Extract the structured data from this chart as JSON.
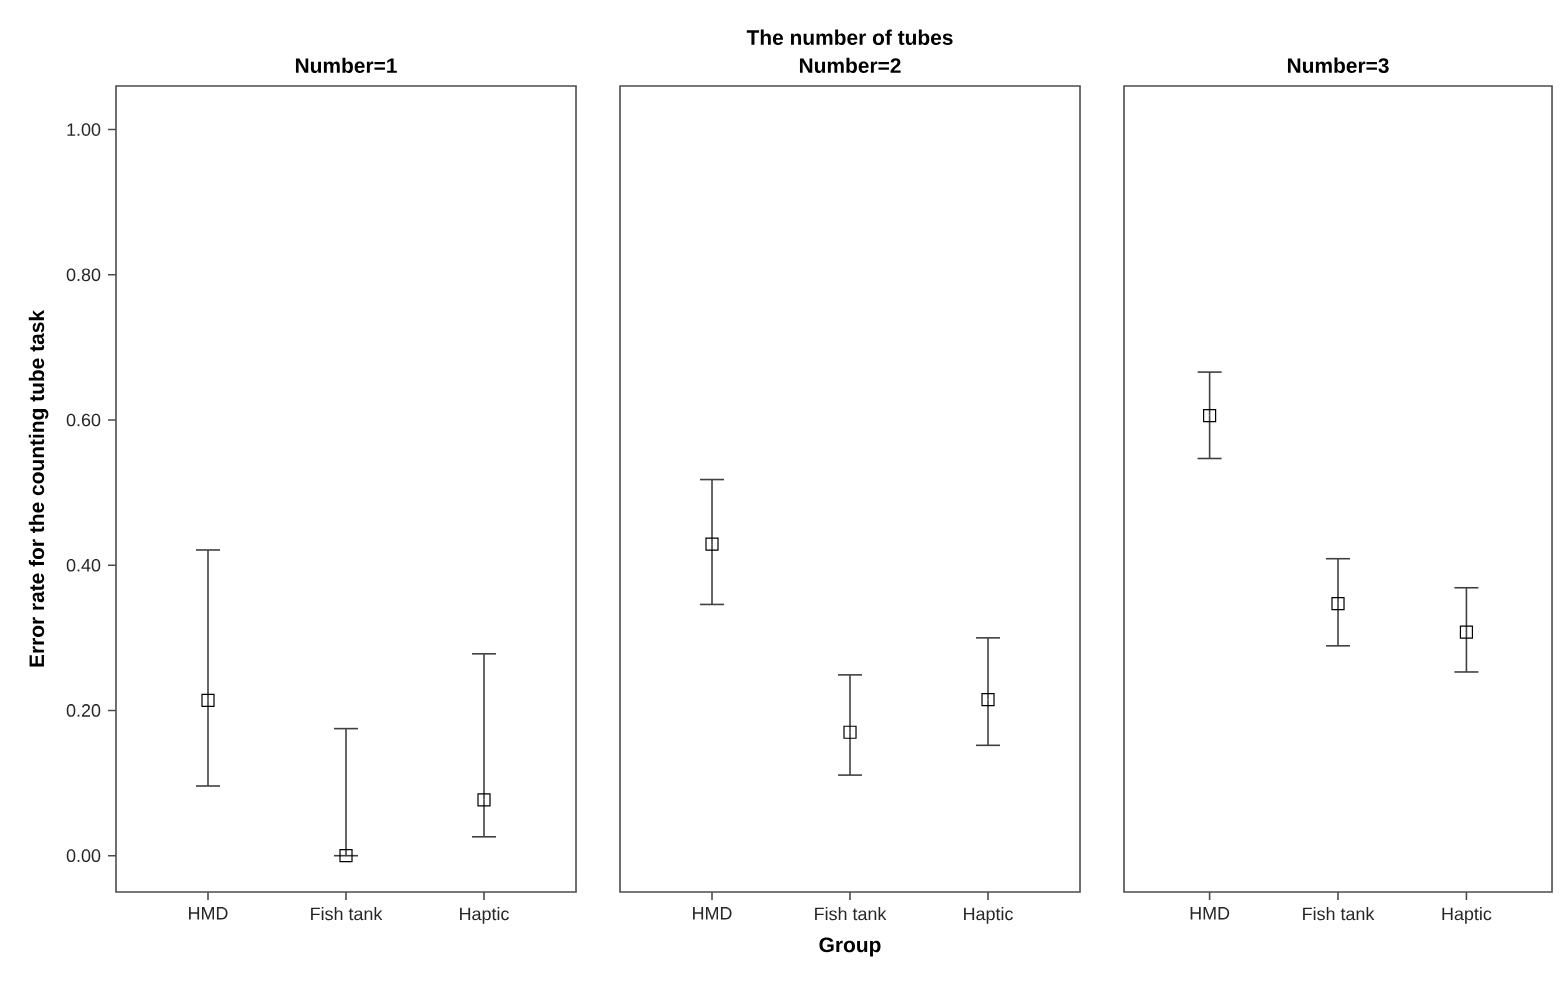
{
  "chart_data": [
    {
      "type": "scatter",
      "title": "Number=1",
      "ylabel": "Error rate for the counting tube task",
      "categories": [
        "HMD",
        "Fish tank",
        "Haptic"
      ],
      "values": [
        0.214,
        0.0,
        0.077
      ],
      "errors": [
        [
          0.096,
          0.421
        ],
        [
          0.0,
          0.175
        ],
        [
          0.026,
          0.278
        ]
      ],
      "color": "#000000",
      "marker": "square",
      "ylim": [
        -0.05,
        1.06
      ],
      "yticks": [
        {
          "value": 0,
          "label": "0.00"
        },
        {
          "value": 0.2,
          "label": "0.20"
        },
        {
          "value": 0.4,
          "label": "0.40"
        },
        {
          "value": 0.6,
          "label": "0.60"
        },
        {
          "value": 0.8,
          "label": "0.80"
        },
        {
          "value": 1,
          "label": "1.00"
        }
      ],
      "grid": false
    },
    {
      "type": "scatter",
      "title": "Number=2",
      "annotations": [
        "The number of tubes"
      ],
      "xlabel": "Group",
      "categories": [
        "HMD",
        "Fish tank",
        "Haptic"
      ],
      "values": [
        0.429,
        0.17,
        0.215
      ],
      "errors": [
        [
          0.346,
          0.518
        ],
        [
          0.111,
          0.249
        ],
        [
          0.152,
          0.3
        ]
      ],
      "color": "#000000",
      "marker": "square",
      "ylim": [
        -0.05,
        1.06
      ],
      "tick_labels": "x",
      "grid": false
    },
    {
      "type": "scatter",
      "title": "Number=3",
      "categories": [
        "HMD",
        "Fish tank",
        "Haptic"
      ],
      "values": [
        0.606,
        0.347,
        0.308
      ],
      "errors": [
        [
          0.547,
          0.666
        ],
        [
          0.289,
          0.409
        ],
        [
          0.253,
          0.369
        ]
      ],
      "color": "#000000",
      "marker": "square",
      "ylim": [
        -0.05,
        1.06
      ],
      "tick_labels": "x",
      "grid": false
    }
  ]
}
